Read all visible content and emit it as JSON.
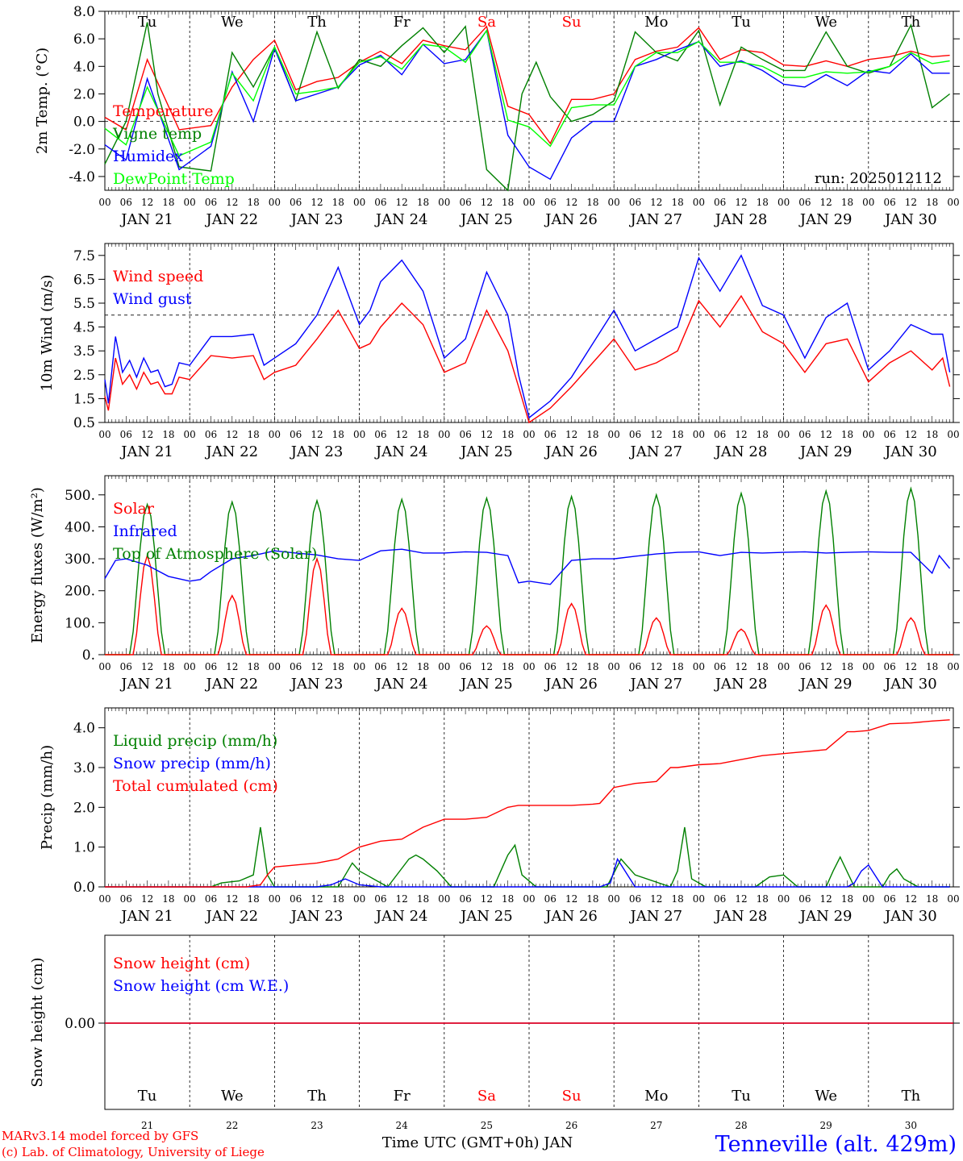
{
  "day_letters": [
    "Tu",
    "We",
    "Th",
    "Fr",
    "Sa",
    "Su",
    "Mo",
    "Tu",
    "We",
    "Th"
  ],
  "weekend_indices": [
    4,
    5
  ],
  "date_labels": [
    "JAN 21",
    "JAN 22",
    "JAN 23",
    "JAN 24",
    "JAN 25",
    "JAN 26",
    "JAN 27",
    "JAN 28",
    "JAN 29",
    "JAN 30"
  ],
  "bottom_day_numbers": [
    "21",
    "22",
    "23",
    "24",
    "25",
    "26",
    "27",
    "28",
    "29",
    "30"
  ],
  "hour_labels": [
    "00",
    "06",
    "12",
    "18"
  ],
  "x_title": "Time UTC (GMT+0h) JAN",
  "footer_left": [
    "MARv3.14 model forced by GFS",
    "(c) Lab. of Climatology, University of Liege"
  ],
  "station": "Tenneville (alt. 429m)",
  "colors": {
    "red": "#ff0000",
    "green": "#008000",
    "blue": "#0000ff",
    "lime": "#00ff00",
    "weekend": "#ff0000",
    "text": "#000000"
  },
  "chart_data": [
    {
      "type": "line",
      "ylabel": "2m Temp. (°C)",
      "ylim": [
        -5,
        8
      ],
      "ytick_labels": [
        "8.0",
        "6.0",
        "4.0",
        "2.0",
        "0.0",
        "-2.0",
        "-4.0"
      ],
      "ytick_values": [
        8,
        6,
        4,
        2,
        0,
        -2,
        -4
      ],
      "reference_line": 0,
      "run_label": "run: 2025012112",
      "x_unit": "hours since JAN 21 00 UTC",
      "series": [
        {
          "name": "Temperature",
          "color": "red",
          "x": [
            0,
            6,
            12,
            21,
            30,
            36,
            42,
            48,
            54,
            60,
            66,
            72,
            78,
            84,
            90,
            96,
            102,
            108,
            114,
            120,
            126,
            132,
            138,
            144,
            150,
            156,
            162,
            168,
            174,
            180,
            186,
            192,
            198,
            204,
            210,
            216,
            222,
            228,
            234,
            239
          ],
          "y": [
            0.3,
            -0.6,
            4.5,
            -0.6,
            -0.3,
            2.5,
            4.5,
            5.9,
            2.3,
            2.9,
            3.2,
            4.3,
            5.1,
            4.2,
            5.9,
            5.5,
            5.2,
            6.9,
            1.1,
            0.5,
            -1.6,
            1.6,
            1.6,
            2.0,
            4.5,
            5.1,
            5.4,
            6.8,
            4.5,
            5.2,
            5.0,
            4.1,
            4.0,
            4.4,
            4.0,
            4.5,
            4.7,
            5.1,
            4.7,
            4.8
          ]
        },
        {
          "name": "Vigne temp",
          "color": "green",
          "x": [
            0,
            6,
            12,
            15,
            21,
            30,
            36,
            42,
            48,
            54,
            60,
            66,
            72,
            78,
            84,
            90,
            96,
            102,
            108,
            114,
            118,
            122,
            126,
            132,
            138,
            144,
            150,
            156,
            162,
            168,
            174,
            180,
            186,
            192,
            198,
            204,
            210,
            216,
            222,
            228,
            234,
            239
          ],
          "y": [
            -3.1,
            0.0,
            7.2,
            2.0,
            -3.3,
            -3.6,
            5.0,
            2.5,
            5.4,
            1.5,
            6.5,
            2.4,
            4.5,
            4.0,
            5.5,
            6.8,
            5.0,
            6.9,
            -3.5,
            -5.0,
            2.0,
            4.3,
            1.8,
            0.0,
            0.5,
            1.5,
            6.5,
            5.0,
            4.4,
            6.6,
            1.2,
            5.4,
            4.5,
            3.7,
            3.7,
            6.5,
            4.0,
            3.5,
            4.0,
            7.0,
            1.0,
            2.0
          ]
        },
        {
          "name": "Humidex",
          "color": "blue",
          "x": [
            0,
            6,
            12,
            21,
            30,
            36,
            42,
            48,
            54,
            60,
            66,
            72,
            78,
            84,
            90,
            96,
            102,
            108,
            114,
            120,
            126,
            132,
            138,
            144,
            150,
            156,
            162,
            168,
            174,
            180,
            186,
            192,
            198,
            204,
            210,
            216,
            222,
            228,
            234,
            239
          ],
          "y": [
            -1.7,
            -2.8,
            3.1,
            -3.5,
            -1.8,
            3.6,
            0.0,
            5.3,
            1.5,
            2.0,
            2.5,
            4.1,
            4.8,
            3.4,
            5.6,
            4.2,
            4.5,
            6.6,
            -1.0,
            -3.3,
            -4.2,
            -1.2,
            0.0,
            0.0,
            4.0,
            4.5,
            5.2,
            5.8,
            4.0,
            4.4,
            3.7,
            2.7,
            2.5,
            3.4,
            2.6,
            3.7,
            3.5,
            4.9,
            3.5,
            3.5
          ]
        },
        {
          "name": "DewPoint Temp",
          "color": "lime",
          "x": [
            0,
            6,
            12,
            21,
            30,
            36,
            42,
            48,
            54,
            60,
            66,
            72,
            78,
            84,
            90,
            96,
            102,
            108,
            114,
            120,
            126,
            132,
            138,
            144,
            150,
            156,
            162,
            168,
            174,
            180,
            186,
            192,
            198,
            204,
            210,
            216,
            222,
            228,
            234,
            239
          ],
          "y": [
            -0.5,
            -1.7,
            2.5,
            -2.5,
            -1.5,
            3.5,
            1.5,
            5.4,
            2.0,
            2.2,
            2.5,
            4.3,
            4.7,
            3.8,
            5.6,
            5.4,
            4.3,
            6.6,
            0.1,
            -0.4,
            -1.8,
            1.0,
            1.2,
            1.2,
            4.0,
            5.0,
            5.0,
            5.8,
            4.3,
            4.3,
            4.0,
            3.2,
            3.2,
            3.6,
            3.5,
            3.6,
            4.0,
            5.0,
            4.2,
            4.4
          ]
        }
      ]
    },
    {
      "type": "line",
      "ylabel": "10m Wind (m/s)",
      "ylim": [
        0.5,
        8.0
      ],
      "ytick_labels": [
        "7.5",
        "6.5",
        "5.5",
        "4.5",
        "3.5",
        "2.5",
        "1.5",
        "0.5"
      ],
      "ytick_values": [
        7.5,
        6.5,
        5.5,
        4.5,
        3.5,
        2.5,
        1.5,
        0.5
      ],
      "reference_line": 5.0,
      "x_unit": "hours since JAN 21 00 UTC",
      "series": [
        {
          "name": "Wind speed",
          "color": "red",
          "x": [
            0,
            1,
            3,
            5,
            7,
            9,
            11,
            13,
            15,
            17,
            19,
            21,
            24,
            30,
            36,
            42,
            45,
            48,
            54,
            60,
            66,
            72,
            75,
            78,
            84,
            90,
            96,
            102,
            108,
            114,
            117,
            120,
            126,
            132,
            138,
            144,
            150,
            156,
            162,
            168,
            174,
            180,
            186,
            192,
            198,
            204,
            210,
            216,
            222,
            228,
            234,
            237,
            239
          ],
          "y": [
            1.6,
            1.0,
            3.2,
            2.1,
            2.5,
            1.9,
            2.6,
            2.1,
            2.2,
            1.7,
            1.7,
            2.4,
            2.3,
            3.3,
            3.2,
            3.3,
            2.3,
            2.6,
            2.9,
            4.0,
            5.2,
            3.6,
            3.8,
            4.5,
            5.5,
            4.6,
            2.6,
            3.0,
            5.2,
            3.5,
            2.0,
            0.5,
            1.1,
            2.0,
            3.0,
            4.0,
            2.7,
            3.0,
            3.5,
            5.6,
            4.5,
            5.8,
            4.3,
            3.8,
            2.6,
            3.8,
            4.0,
            2.2,
            3.0,
            3.5,
            2.7,
            3.2,
            2.0
          ]
        },
        {
          "name": "Wind gust",
          "color": "blue",
          "x": [
            0,
            1,
            3,
            5,
            7,
            9,
            11,
            13,
            15,
            17,
            19,
            21,
            24,
            30,
            36,
            42,
            45,
            48,
            54,
            60,
            66,
            72,
            75,
            78,
            84,
            90,
            96,
            102,
            108,
            114,
            117,
            120,
            126,
            132,
            138,
            144,
            150,
            156,
            162,
            168,
            174,
            180,
            186,
            192,
            198,
            204,
            210,
            216,
            222,
            228,
            234,
            237,
            239
          ],
          "y": [
            2.3,
            1.3,
            4.1,
            2.6,
            3.1,
            2.4,
            3.2,
            2.6,
            2.7,
            2.0,
            2.1,
            3.0,
            2.9,
            4.1,
            4.1,
            4.2,
            2.9,
            3.2,
            3.8,
            5.0,
            7.0,
            4.6,
            5.2,
            6.4,
            7.3,
            6.0,
            3.2,
            4.0,
            6.8,
            5.0,
            2.5,
            0.7,
            1.4,
            2.4,
            3.8,
            5.2,
            3.5,
            4.0,
            4.5,
            7.4,
            6.0,
            7.5,
            5.4,
            5.0,
            3.2,
            4.9,
            5.5,
            2.7,
            3.5,
            4.6,
            4.2,
            4.2,
            2.6
          ]
        }
      ]
    },
    {
      "type": "line",
      "ylabel": "Energy fluxes (W/m²)",
      "ylim": [
        0,
        560
      ],
      "ytick_labels": [
        "500.",
        "400.",
        "300.",
        "200.",
        "100.",
        "0."
      ],
      "ytick_values": [
        500,
        400,
        300,
        200,
        100,
        0
      ],
      "x_unit": "hours since JAN 21 00 UTC",
      "series": [
        {
          "name": "Solar",
          "color": "red",
          "day_peaks": [
            310,
            185,
            300,
            145,
            90,
            160,
            115,
            80,
            155,
            115
          ]
        },
        {
          "name": "Infrared",
          "color": "blue",
          "x": [
            0,
            3,
            6,
            12,
            18,
            24,
            27,
            30,
            36,
            42,
            48,
            54,
            60,
            66,
            72,
            78,
            84,
            90,
            96,
            102,
            108,
            114,
            117,
            120,
            126,
            132,
            138,
            144,
            150,
            156,
            162,
            168,
            174,
            180,
            186,
            192,
            198,
            204,
            210,
            216,
            222,
            228,
            234,
            236,
            239
          ],
          "y": [
            238,
            295,
            300,
            280,
            245,
            230,
            235,
            260,
            300,
            310,
            325,
            318,
            312,
            300,
            295,
            325,
            330,
            318,
            318,
            322,
            320,
            310,
            225,
            230,
            220,
            295,
            300,
            300,
            308,
            315,
            320,
            322,
            310,
            320,
            318,
            320,
            322,
            318,
            320,
            322,
            320,
            320,
            255,
            310,
            270
          ]
        },
        {
          "name": "Top of Atmosphere (Solar)",
          "color": "green",
          "day_peaks": [
            470,
            478,
            482,
            486,
            490,
            495,
            500,
            505,
            512,
            520
          ]
        }
      ]
    },
    {
      "type": "line",
      "ylabel": "Precip (mm/h)",
      "ylim": [
        0,
        4.5
      ],
      "ytick_labels": [
        "4.0",
        "3.0",
        "2.0",
        "1.0",
        "0.0"
      ],
      "ytick_values": [
        4,
        3,
        2,
        1,
        0
      ],
      "x_unit": "hours since JAN 21 00 UTC",
      "series": [
        {
          "name": "Liquid precip (mm/h)",
          "color": "green",
          "x": [
            0,
            30,
            33,
            38,
            42,
            44,
            46,
            48,
            54,
            66,
            68,
            70,
            72,
            74,
            76,
            80,
            86,
            88,
            90,
            94,
            98,
            110,
            112,
            114,
            116,
            118,
            122,
            128,
            142,
            146,
            150,
            160,
            162,
            164,
            166,
            170,
            184,
            188,
            192,
            196,
            204,
            206,
            208,
            212,
            220,
            222,
            224,
            226,
            230,
            239
          ],
          "y": [
            0,
            0,
            0.1,
            0.15,
            0.3,
            1.5,
            0.3,
            0,
            0,
            0,
            0.3,
            0.6,
            0.4,
            0.3,
            0.2,
            0,
            0.7,
            0.8,
            0.7,
            0.4,
            0,
            0,
            0.4,
            0.8,
            1.05,
            0.3,
            0,
            0,
            0,
            0.7,
            0.3,
            0,
            0.4,
            1.5,
            0.2,
            0,
            0,
            0.25,
            0.3,
            0,
            0,
            0.4,
            0.75,
            0,
            0,
            0.3,
            0.45,
            0.2,
            0,
            0
          ]
        },
        {
          "name": "Snow precip (mm/h)",
          "color": "blue",
          "x": [
            0,
            60,
            64,
            68,
            72,
            78,
            140,
            143,
            145,
            150,
            168,
            210,
            212,
            214,
            216,
            220,
            239
          ],
          "y": [
            0,
            0,
            0.05,
            0.2,
            0.05,
            0,
            0,
            0.1,
            0.7,
            0,
            0,
            0,
            0.1,
            0.4,
            0.55,
            0,
            0
          ]
        },
        {
          "name": "Total cumulated (cm)",
          "color": "red",
          "x": [
            0,
            40,
            44,
            46,
            48,
            60,
            66,
            72,
            78,
            84,
            90,
            96,
            102,
            108,
            114,
            117,
            120,
            126,
            132,
            138,
            140,
            144,
            150,
            156,
            160,
            162,
            168,
            174,
            180,
            186,
            192,
            198,
            204,
            210,
            212,
            216,
            222,
            228,
            234,
            239
          ],
          "y": [
            0,
            0,
            0.05,
            0.3,
            0.5,
            0.6,
            0.7,
            1.0,
            1.15,
            1.2,
            1.5,
            1.7,
            1.7,
            1.75,
            2.0,
            2.05,
            2.05,
            2.05,
            2.05,
            2.08,
            2.1,
            2.5,
            2.6,
            2.65,
            3.0,
            3.0,
            3.07,
            3.1,
            3.2,
            3.3,
            3.35,
            3.4,
            3.45,
            3.9,
            3.9,
            3.93,
            4.1,
            4.12,
            4.17,
            4.2
          ]
        }
      ]
    },
    {
      "type": "line",
      "ylabel": "Snow height (cm)",
      "ytick_labels": [
        "0.00"
      ],
      "ytick_values": [
        0
      ],
      "series": [
        {
          "name": "Snow height (cm)",
          "color": "red",
          "x": [
            0,
            240
          ],
          "y": [
            0,
            0
          ]
        },
        {
          "name": "Snow height (cm W.E.)",
          "color": "blue",
          "x": [
            0,
            240
          ],
          "y": [
            0,
            0
          ]
        }
      ]
    }
  ]
}
